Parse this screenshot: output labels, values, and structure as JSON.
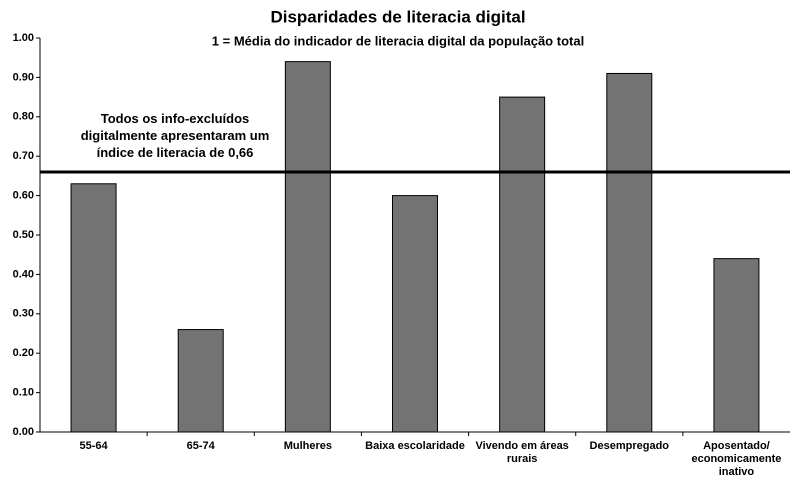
{
  "chart_data": {
    "type": "bar",
    "title": "Disparidades de literacia digital",
    "subtitle": "1 = Média do indicador de literacia digital da população total",
    "categories": [
      "55-64",
      "65-74",
      "Mulheres",
      "Baixa escolaridade",
      "Vivendo em áreas rurais",
      "Desempregado",
      "Aposentado/ economicamente inativo"
    ],
    "values": [
      0.63,
      0.26,
      0.94,
      0.6,
      0.85,
      0.91,
      0.44
    ],
    "color": "#737373",
    "ylim": [
      0,
      1
    ],
    "yticks": [
      {
        "value": 0,
        "label": "0.00"
      },
      {
        "value": 0.1,
        "label": "0.10"
      },
      {
        "value": 0.2,
        "label": "0.20"
      },
      {
        "value": 0.3,
        "label": "0.30"
      },
      {
        "value": 0.4,
        "label": "0.40"
      },
      {
        "value": 0.5,
        "label": "0.50"
      },
      {
        "value": 0.6,
        "label": "0.60"
      },
      {
        "value": 0.7,
        "label": "0.70"
      },
      {
        "value": 0.8,
        "label": "0.80"
      },
      {
        "value": 0.9,
        "label": "0.90"
      },
      {
        "value": 1,
        "label": "1.00"
      }
    ],
    "reference_line": {
      "value": 0.66,
      "label": "Todos os info-excluídos digitalmente apresentaram um índice de literacia de 0,66"
    },
    "grid": false
  }
}
